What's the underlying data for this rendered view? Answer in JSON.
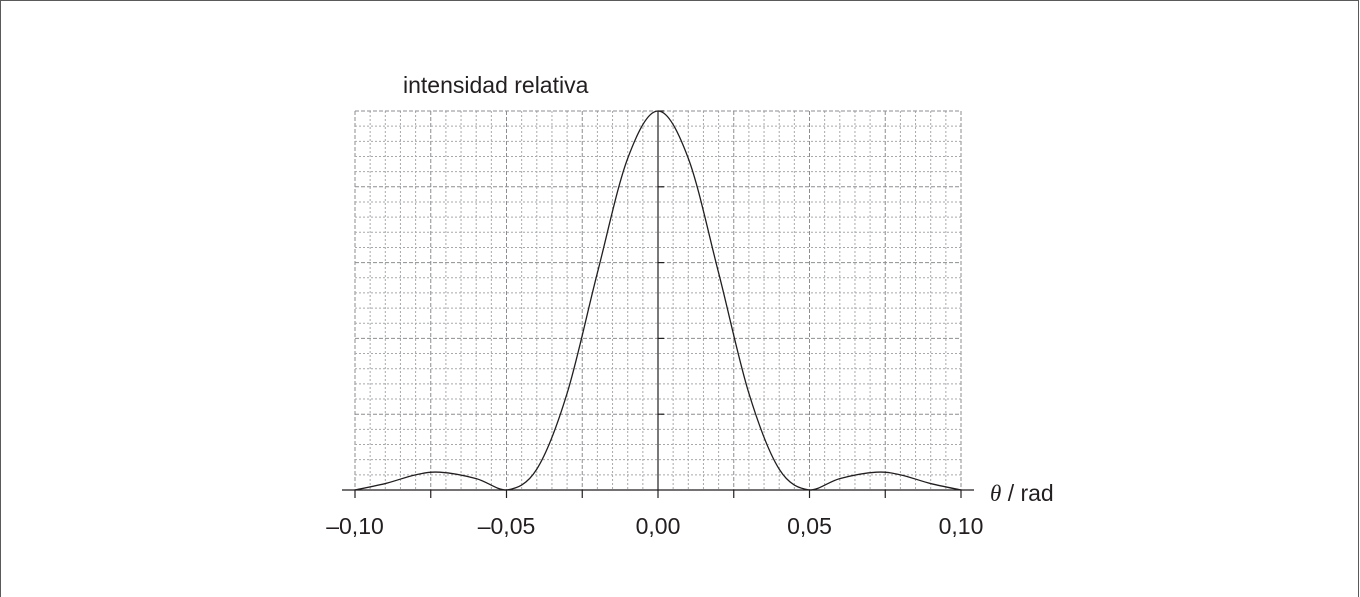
{
  "chart_data": {
    "type": "line",
    "ylabel": "intensidad relativa",
    "xlabel_symbol": "θ",
    "xlabel_unit": " / rad",
    "xlim": [
      -0.1,
      0.1
    ],
    "ylim": [
      0,
      1
    ],
    "x_tick_labels": [
      "–0,10",
      "–0,05",
      "0,00",
      "0,05",
      "0,10"
    ],
    "x_ticks": [
      -0.1,
      -0.05,
      0.0,
      0.05,
      0.1
    ],
    "grid": true,
    "series": [
      {
        "x": [
          -0.1,
          -0.09,
          -0.08,
          -0.072,
          -0.06,
          -0.05,
          -0.04,
          -0.03,
          -0.02,
          -0.01,
          0.0,
          0.01,
          0.02,
          0.03,
          0.04,
          0.05,
          0.06,
          0.072,
          0.08,
          0.09,
          0.1
        ],
        "y": [
          0.0,
          0.017,
          0.04,
          0.047,
          0.03,
          0.0,
          0.055,
          0.255,
          0.573,
          0.875,
          1.0,
          0.875,
          0.573,
          0.255,
          0.055,
          0.0,
          0.03,
          0.047,
          0.04,
          0.017,
          0.0
        ]
      }
    ]
  }
}
